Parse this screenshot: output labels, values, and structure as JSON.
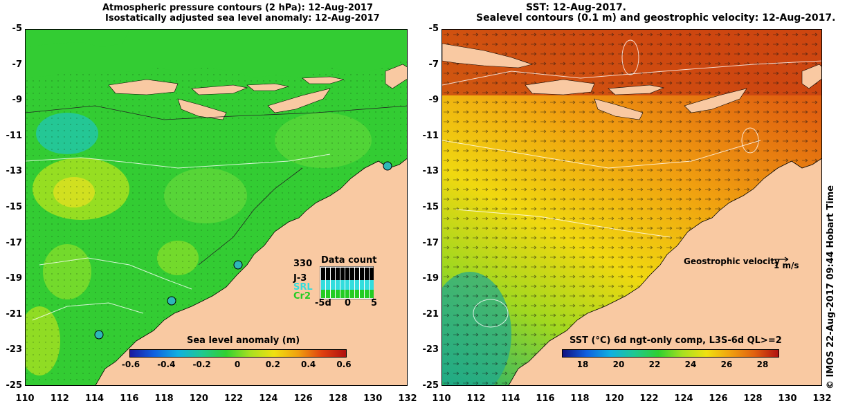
{
  "left_panel": {
    "title_line1": "Atmospheric pressure contours (2 hPa): 12-Aug-2017",
    "title_line2": "Isostatically adjusted sea level anomaly: 12-Aug-2017",
    "colorbar_title": "Sea level anomaly (m)",
    "colorbar_ticks": [
      "-0.6",
      "-0.4",
      "-0.2",
      "0",
      "0.2",
      "0.4",
      "0.6"
    ],
    "data_count": {
      "title": "Data count",
      "max_label": "330",
      "satellites": [
        "J-3",
        "SRL",
        "Cr2"
      ],
      "satellite_colors": [
        "#000000",
        "#33dddd",
        "#22cc22"
      ],
      "x_ticks": [
        "-5d",
        "0",
        "5"
      ]
    }
  },
  "right_panel": {
    "title_line1": "SST: 12-Aug-2017.",
    "title_line2": "Sealevel contours (0.1 m) and geostrophic velocity: 12-Aug-2017.",
    "colorbar_title": "SST (°C) 6d ngt-only comp, L3S-6d QL>=2",
    "colorbar_ticks": [
      "18",
      "20",
      "22",
      "24",
      "26",
      "28"
    ],
    "velocity_label": "Geostrophic velocity",
    "velocity_scale": "1 m/s"
  },
  "y_ticks": [
    "-5",
    "-7",
    "-9",
    "-11",
    "-13",
    "-15",
    "-17",
    "-19",
    "-21",
    "-23",
    "-25"
  ],
  "x_ticks": [
    "110",
    "112",
    "114",
    "116",
    "118",
    "120",
    "122",
    "124",
    "126",
    "128",
    "130",
    "132"
  ],
  "stamp": "© IMOS 22-Aug-2017 09:44 Hobart Time",
  "colors": {
    "land": "#f9c9a2",
    "sla_ocean": "#33cc33",
    "sst_ocean": "#f59a1a"
  }
}
